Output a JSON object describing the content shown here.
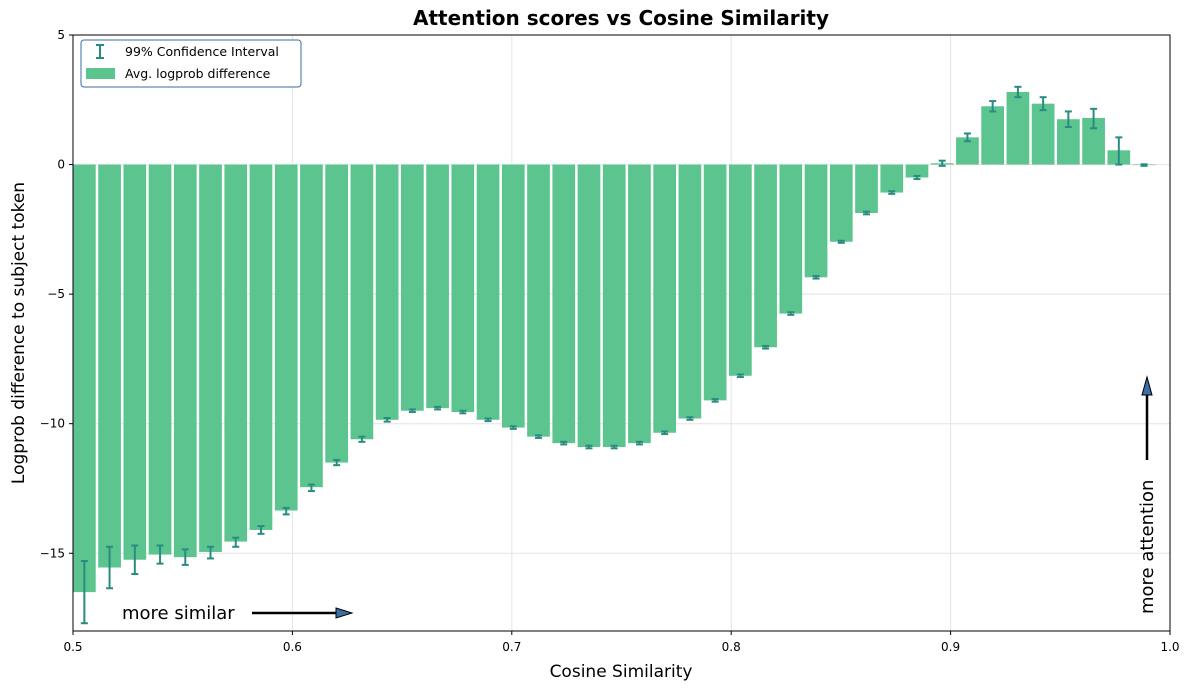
{
  "colors": {
    "bar": "#5bc48f",
    "errorbar": "#2a8c80",
    "arrow_fill": "#3a6ea5",
    "legend_border": "#3a6ea5",
    "grid": "#e3e3e3"
  },
  "chart_data": {
    "type": "bar",
    "title": "Attention scores vs Cosine Similarity",
    "xlabel": "Cosine Similarity",
    "ylabel": "Logprob difference to subject token",
    "xlim": [
      0.5,
      1.0
    ],
    "ylim": [
      -18,
      5
    ],
    "xticks": [
      "0.5",
      "0.6",
      "0.7",
      "0.8",
      "0.9",
      "1.0"
    ],
    "xtick_values": [
      0.5,
      0.6,
      0.7,
      0.8,
      0.9,
      1.0
    ],
    "yticks": [
      "5",
      "0",
      "−5",
      "−10",
      "−15"
    ],
    "ytick_values": [
      5,
      0,
      -5,
      -10,
      -15
    ],
    "grid": true,
    "legend_position": "top-left",
    "legend": [
      "99% Confidence Interval",
      "Avg. logprob difference"
    ],
    "bin_width": 0.0115,
    "bin_start": 0.5,
    "values": [
      -16.5,
      -15.55,
      -15.25,
      -15.05,
      -15.15,
      -14.95,
      -14.55,
      -14.1,
      -13.35,
      -12.45,
      -11.5,
      -10.6,
      -9.85,
      -9.5,
      -9.4,
      -9.55,
      -9.85,
      -10.15,
      -10.5,
      -10.75,
      -10.9,
      -10.9,
      -10.75,
      -10.35,
      -9.8,
      -9.1,
      -8.15,
      -7.05,
      -5.75,
      -4.35,
      -2.98,
      -1.87,
      -1.08,
      -0.5,
      0.05,
      1.05,
      2.25,
      2.8,
      2.35,
      1.75,
      1.8,
      0.55,
      -0.02
    ],
    "ci": [
      [
        -17.7,
        -15.3
      ],
      [
        -16.35,
        -14.75
      ],
      [
        -15.8,
        -14.7
      ],
      [
        -15.4,
        -14.7
      ],
      [
        -15.45,
        -14.85
      ],
      [
        -15.2,
        -14.75
      ],
      [
        -14.75,
        -14.4
      ],
      [
        -14.25,
        -13.95
      ],
      [
        -13.5,
        -13.25
      ],
      [
        -12.6,
        -12.35
      ],
      [
        -11.6,
        -11.4
      ],
      [
        -10.7,
        -10.5
      ],
      [
        -9.92,
        -9.78
      ],
      [
        -9.55,
        -9.45
      ],
      [
        -9.45,
        -9.35
      ],
      [
        -9.6,
        -9.5
      ],
      [
        -9.9,
        -9.8
      ],
      [
        -10.2,
        -10.1
      ],
      [
        -10.55,
        -10.45
      ],
      [
        -10.8,
        -10.7
      ],
      [
        -10.95,
        -10.85
      ],
      [
        -10.95,
        -10.85
      ],
      [
        -10.8,
        -10.7
      ],
      [
        -10.4,
        -10.3
      ],
      [
        -9.85,
        -9.75
      ],
      [
        -9.15,
        -9.05
      ],
      [
        -8.2,
        -8.1
      ],
      [
        -7.1,
        -7.0
      ],
      [
        -5.8,
        -5.7
      ],
      [
        -4.4,
        -4.3
      ],
      [
        -3.02,
        -2.94
      ],
      [
        -1.92,
        -1.82
      ],
      [
        -1.13,
        -1.03
      ],
      [
        -0.56,
        -0.44
      ],
      [
        -0.05,
        0.15
      ],
      [
        0.9,
        1.2
      ],
      [
        2.05,
        2.45
      ],
      [
        2.6,
        3.0
      ],
      [
        2.1,
        2.6
      ],
      [
        1.45,
        2.05
      ],
      [
        1.4,
        2.15
      ],
      [
        0.0,
        1.05
      ],
      [
        -0.05,
        0.01
      ]
    ],
    "annotations": {
      "similar": "more similar",
      "attention": "more attention"
    }
  }
}
